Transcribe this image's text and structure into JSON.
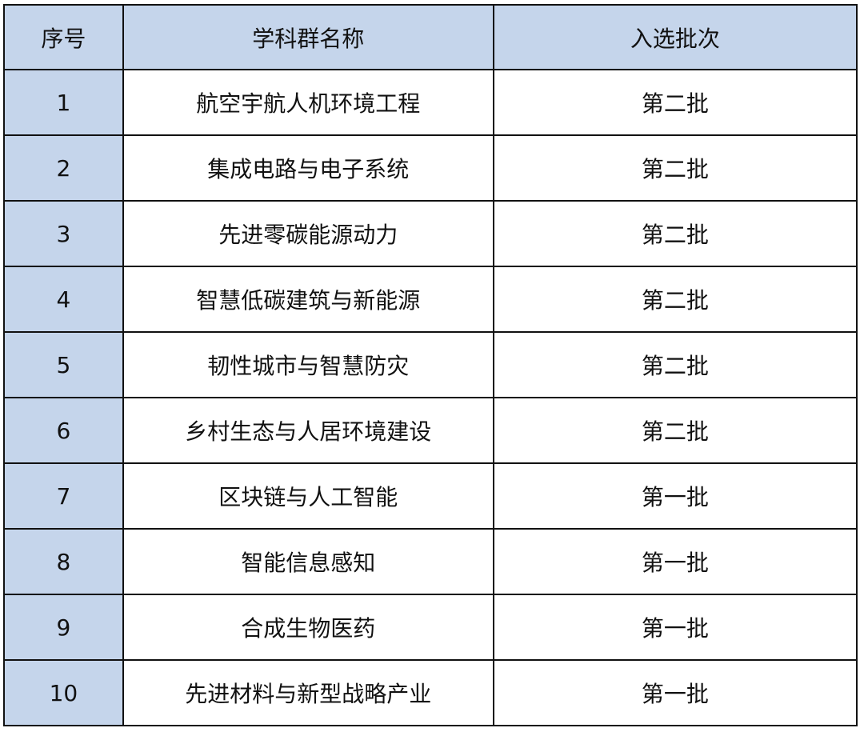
{
  "header": {
    "index": "序号",
    "name": "学科群名称",
    "batch": "入选批次"
  },
  "rows": [
    {
      "index": "1",
      "name": "航空宇航人机环境工程",
      "batch": "第二批"
    },
    {
      "index": "2",
      "name": "集成电路与电子系统",
      "batch": "第二批"
    },
    {
      "index": "3",
      "name": "先进零碳能源动力",
      "batch": "第二批"
    },
    {
      "index": "4",
      "name": "智慧低碳建筑与新能源",
      "batch": "第二批"
    },
    {
      "index": "5",
      "name": "韧性城市与智慧防灾",
      "batch": "第二批"
    },
    {
      "index": "6",
      "name": "乡村生态与人居环境建设",
      "batch": "第二批"
    },
    {
      "index": "7",
      "name": "区块链与人工智能",
      "batch": "第一批"
    },
    {
      "index": "8",
      "name": "智能信息感知",
      "batch": "第一批"
    },
    {
      "index": "9",
      "name": "合成生物医药",
      "batch": "第一批"
    },
    {
      "index": "10",
      "name": "先进材料与新型战略产业",
      "batch": "第一批"
    }
  ],
  "colors": {
    "header_fill": "#c5d5eb",
    "border": "#111111"
  }
}
